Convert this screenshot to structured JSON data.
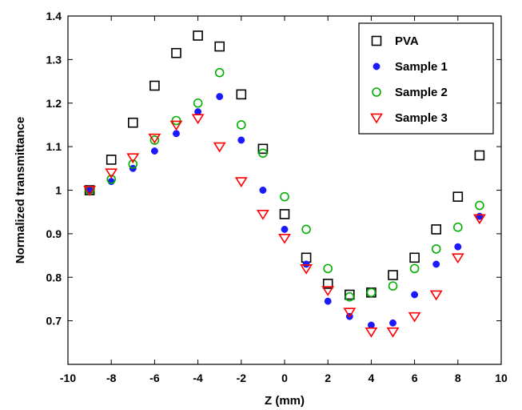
{
  "chart_data": {
    "type": "scatter",
    "xlabel": "Z (mm)",
    "ylabel": "Normalized transmittance",
    "xlim": [
      -10,
      10
    ],
    "ylim": [
      0.6,
      1.4
    ],
    "xticks": [
      "-10",
      "-8",
      "-6",
      "-4",
      "-2",
      "0",
      "2",
      "4",
      "6",
      "8",
      "10"
    ],
    "yticks": [
      "0.7",
      "0.8",
      "0.9",
      "1",
      "1.1",
      "1.2",
      "1.3",
      "1.4"
    ],
    "grid": false,
    "legend_position": "top-right",
    "series": [
      {
        "name": "PVA",
        "marker": "square",
        "color": "#000000",
        "x": [
          -9,
          -8,
          -7,
          -6,
          -5,
          -4,
          -3,
          -2,
          -1,
          0,
          1,
          2,
          3,
          4,
          5,
          6,
          7,
          8,
          9
        ],
        "y": [
          1.0,
          1.07,
          1.155,
          1.24,
          1.315,
          1.355,
          1.33,
          1.22,
          1.095,
          0.945,
          0.845,
          0.785,
          0.76,
          0.765,
          0.805,
          0.845,
          0.91,
          0.985,
          1.08
        ]
      },
      {
        "name": "Sample 1",
        "marker": "dot",
        "color": "#1a1aff",
        "x": [
          -9,
          -8,
          -7,
          -6,
          -5,
          -4,
          -3,
          -2,
          -1,
          0,
          1,
          2,
          3,
          4,
          5,
          6,
          7,
          8,
          9
        ],
        "y": [
          1.0,
          1.02,
          1.05,
          1.09,
          1.13,
          1.18,
          1.215,
          1.115,
          1.0,
          0.91,
          0.83,
          0.745,
          0.71,
          0.69,
          0.695,
          0.76,
          0.83,
          0.87,
          0.94
        ]
      },
      {
        "name": "Sample 2",
        "marker": "circle",
        "color": "#00b000",
        "x": [
          -9,
          -8,
          -7,
          -6,
          -5,
          -4,
          -3,
          -2,
          -1,
          0,
          1,
          2,
          3,
          4,
          5,
          6,
          7,
          8,
          9
        ],
        "y": [
          1.0,
          1.025,
          1.06,
          1.115,
          1.16,
          1.2,
          1.27,
          1.15,
          1.085,
          0.985,
          0.91,
          0.82,
          0.755,
          0.765,
          0.78,
          0.82,
          0.865,
          0.915,
          0.965
        ]
      },
      {
        "name": "Sample 3",
        "marker": "triangle-down",
        "color": "#ff0000",
        "x": [
          -9,
          -8,
          -7,
          -6,
          -5,
          -4,
          -3,
          -2,
          -1,
          0,
          1,
          2,
          3,
          4,
          5,
          6,
          7,
          8,
          9
        ],
        "y": [
          1.0,
          1.04,
          1.075,
          1.12,
          1.15,
          1.165,
          1.1,
          1.02,
          0.945,
          0.89,
          0.82,
          0.77,
          0.72,
          0.675,
          0.675,
          0.71,
          0.76,
          0.845,
          0.935
        ]
      }
    ]
  }
}
